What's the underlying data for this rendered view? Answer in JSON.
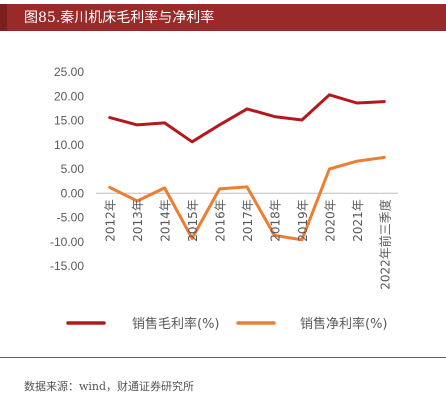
{
  "header": {
    "title": "图85.秦川机床毛利率与净利率"
  },
  "chart_data": {
    "type": "line",
    "title": "",
    "xlabel": "",
    "ylabel": "",
    "categories": [
      "2012年",
      "2013年",
      "2014年",
      "2015年",
      "2016年",
      "2017年",
      "2018年",
      "2019年",
      "2020年",
      "2021年",
      "2022年前三季度"
    ],
    "y_tick_labels": [
      "25.00",
      "20.00",
      "15.00",
      "10.00",
      "5.00",
      "0.00",
      "-5.00",
      "-10.00",
      "-15.00"
    ],
    "ylim": [
      -15,
      25
    ],
    "grid": false,
    "legend_position": "bottom",
    "series": [
      {
        "name": "销售毛利率(%)",
        "color": "#b3191c",
        "values": [
          15.6,
          14.1,
          14.5,
          10.6,
          14.1,
          17.4,
          15.8,
          15.1,
          20.3,
          18.6,
          18.9
        ]
      },
      {
        "name": "销售净利率(%)",
        "color": "#ed7d31",
        "values": [
          1.2,
          -1.6,
          1.1,
          -9.3,
          0.9,
          1.3,
          -8.7,
          -9.6,
          5.0,
          6.6,
          7.4
        ]
      }
    ]
  },
  "footer": {
    "source": "数据来源：wind，财通证券研究所"
  }
}
